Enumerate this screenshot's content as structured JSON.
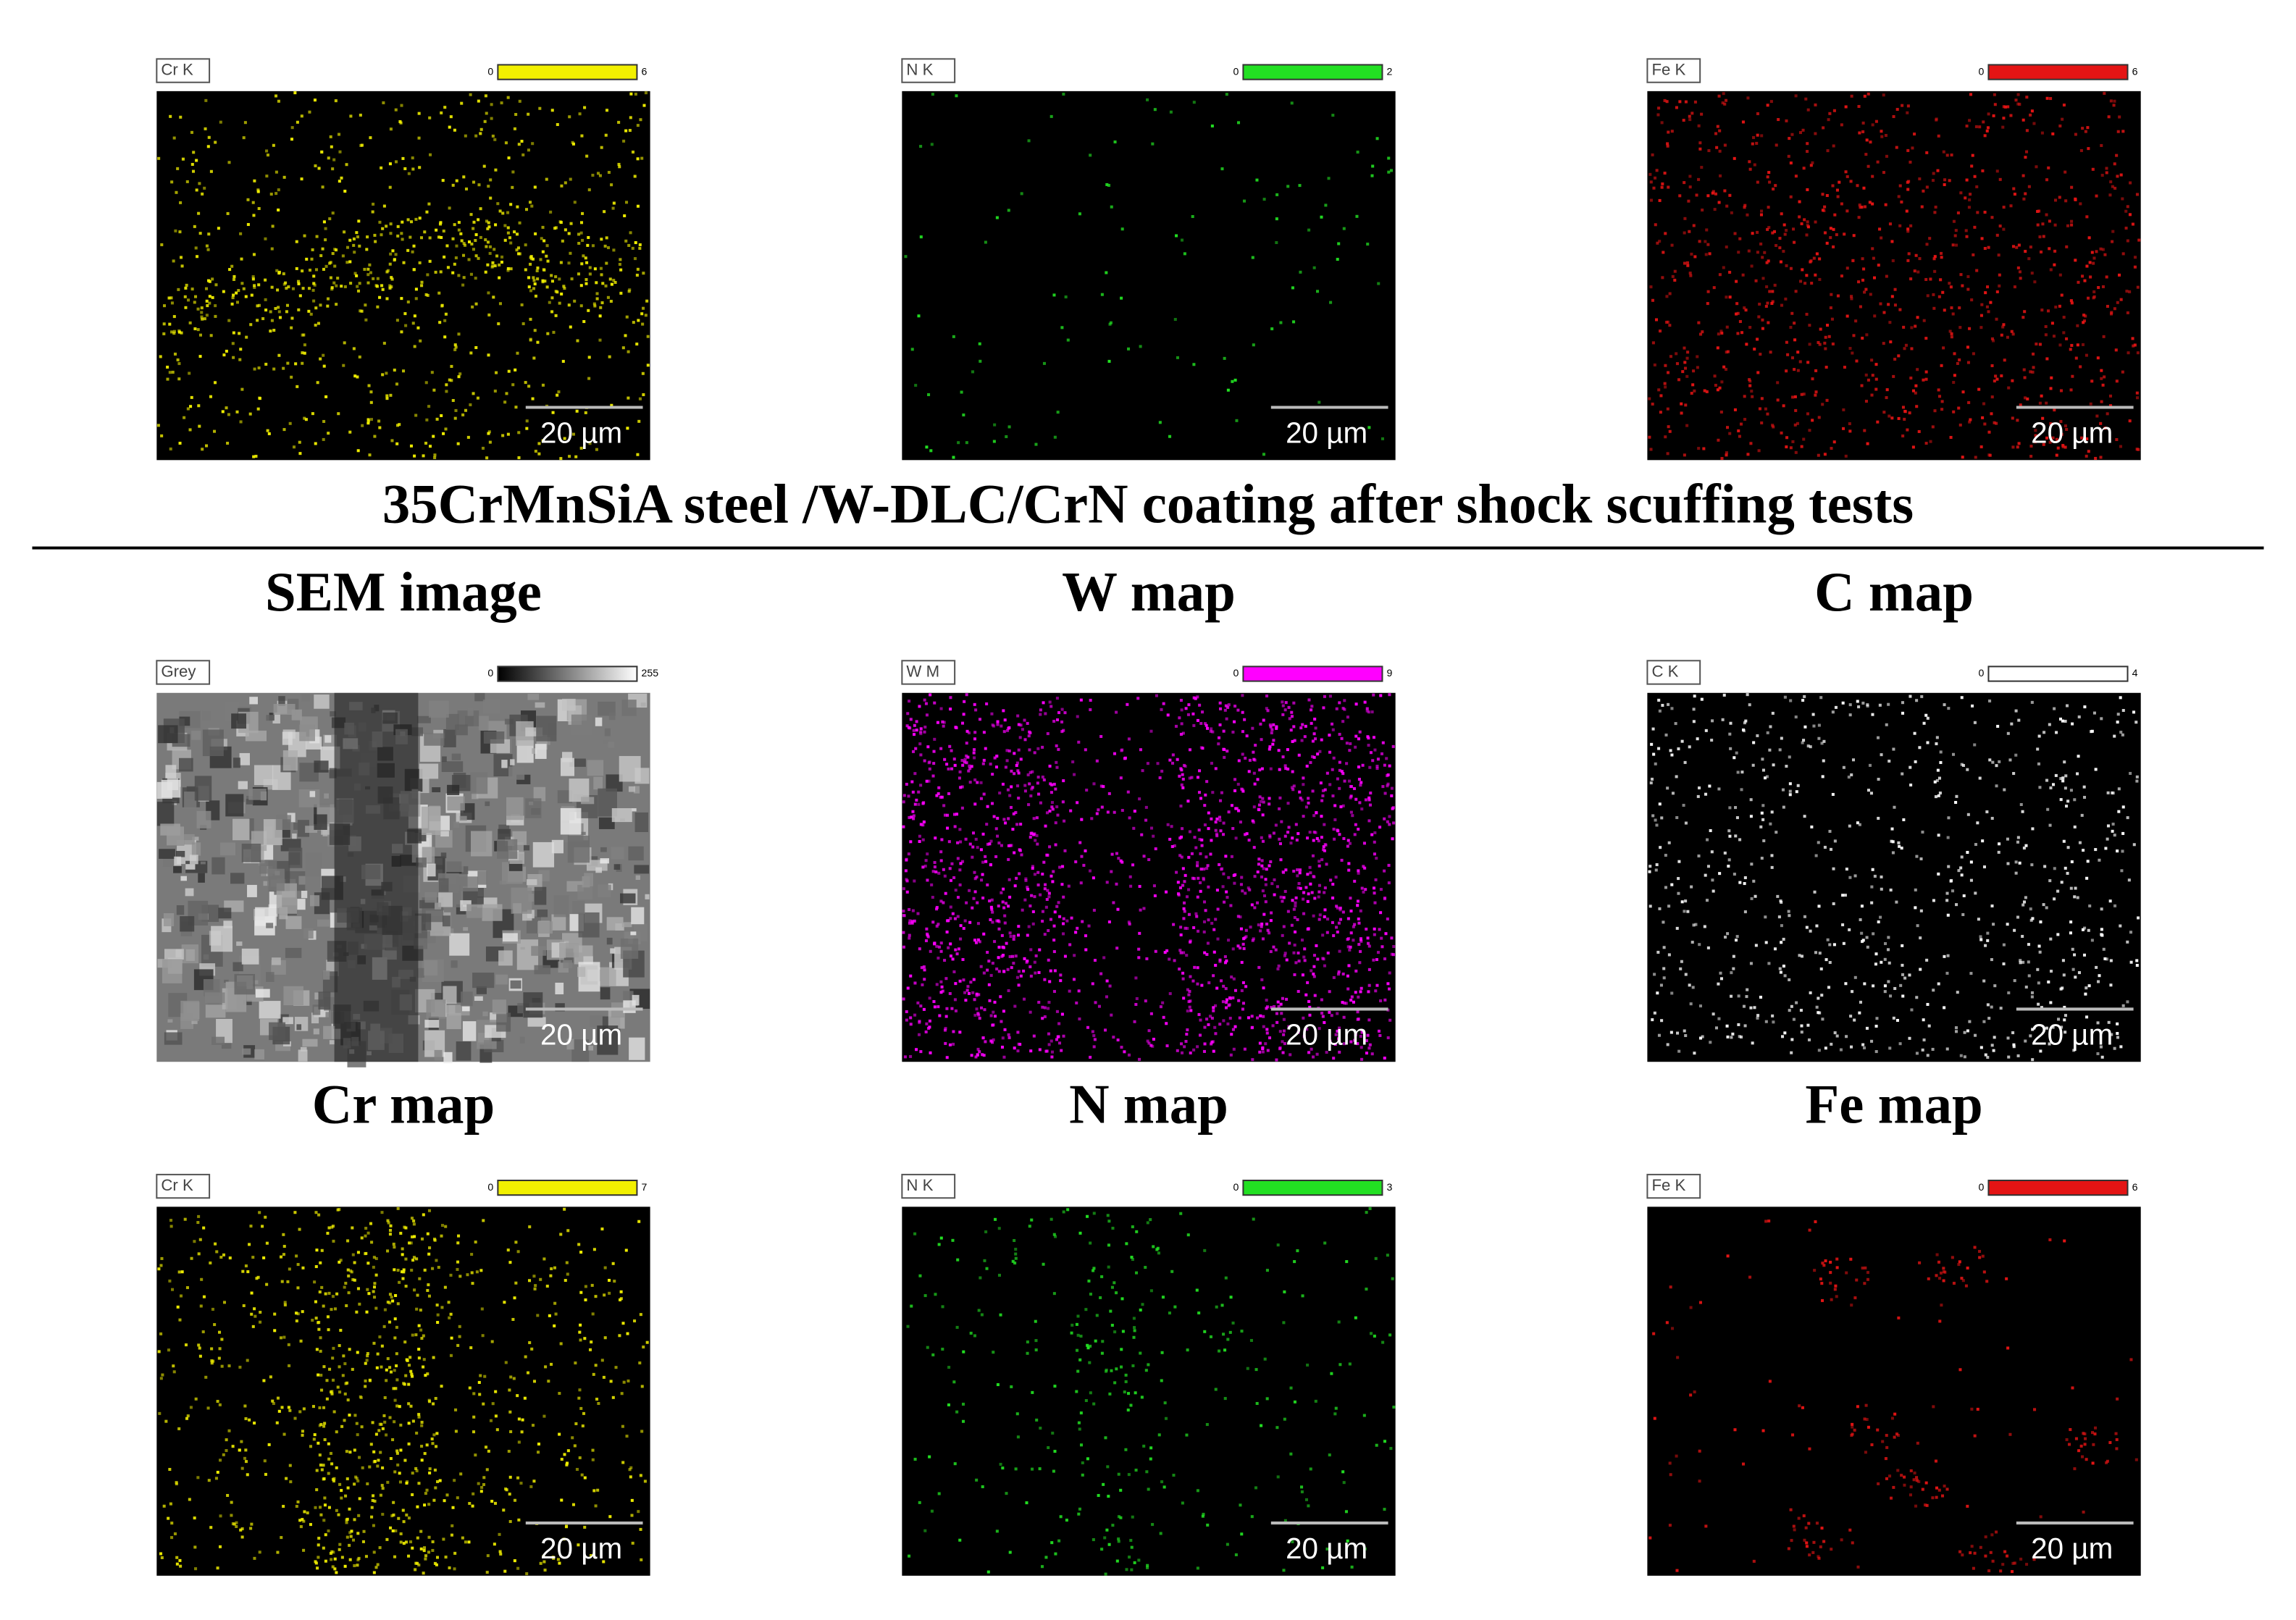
{
  "rows": [
    {
      "panels": [
        {
          "label": "Cr K",
          "scale_min": 0,
          "scale_max": 6,
          "scale_bar": "20 µm",
          "color": "#f2f000"
        },
        {
          "label": "N K",
          "scale_min": 0,
          "scale_max": 2,
          "scale_bar": "20 µm",
          "color": "#22e022"
        },
        {
          "label": "Fe K",
          "scale_min": 0,
          "scale_max": 6,
          "scale_bar": "20 µm",
          "color": "#e41414"
        }
      ]
    },
    {
      "panels": [
        {
          "heading": "SEM image",
          "label": "Grey",
          "scale_min": 0,
          "scale_max": 255,
          "scale_bar": "20 µm",
          "color": "#ffffff",
          "colorbar_gradient": true
        },
        {
          "heading": "W map",
          "label": "W M",
          "scale_min": 0,
          "scale_max": 9,
          "scale_bar": "20 µm",
          "color": "#ff00ff"
        },
        {
          "heading": "C map",
          "label": "C K",
          "scale_min": 0,
          "scale_max": 4,
          "scale_bar": "20 µm",
          "color": "#ffffff"
        }
      ]
    },
    {
      "panels": [
        {
          "heading": "Cr map",
          "label": "Cr K",
          "scale_min": 0,
          "scale_max": 7,
          "scale_bar": "20 µm",
          "color": "#f2f000"
        },
        {
          "heading": "N map",
          "label": "N K",
          "scale_min": 0,
          "scale_max": 3,
          "scale_bar": "20 µm",
          "color": "#22e022"
        },
        {
          "heading": "Fe map",
          "label": "Fe K",
          "scale_min": 0,
          "scale_max": 6,
          "scale_bar": "20 µm",
          "color": "#e41414"
        }
      ]
    }
  ],
  "caption": "35CrMnSiA steel /W-DLC/CrN coating after shock scuffing tests"
}
